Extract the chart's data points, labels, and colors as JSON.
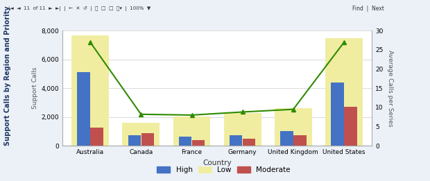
{
  "categories": [
    "Australia",
    "Canada",
    "France",
    "Germany",
    "United Kingdom",
    "United States"
  ],
  "high": [
    5100,
    750,
    650,
    750,
    1000,
    4400
  ],
  "low": [
    7700,
    1600,
    2050,
    2250,
    2600,
    7500
  ],
  "moderate": [
    1250,
    850,
    400,
    500,
    750,
    2700
  ],
  "avg_calls": [
    27,
    8.2,
    8.0,
    8.8,
    9.5,
    27
  ],
  "bar_color_high": "#4472C4",
  "bar_color_low": "#F0EDA0",
  "bar_color_moderate": "#C0504D",
  "line_color": "#2E8B00",
  "ylabel_left": "Support Calls",
  "ylabel_right": "Average Calls per Series",
  "xlabel": "Country",
  "chart_title": "Support Calls by Region and Priority",
  "ylim_left": [
    0,
    8000
  ],
  "ylim_right": [
    0,
    30
  ],
  "yticks_left": [
    0,
    2000,
    4000,
    6000,
    8000
  ],
  "yticks_right": [
    0,
    5,
    10,
    15,
    20,
    25,
    30
  ],
  "plot_bg_color": "#FFFFFF",
  "grid_color": "#CCCCCC",
  "toolbar_bg": "#ECF1F8",
  "chart_bg": "#FFFFFF",
  "legend_labels": [
    "High",
    "Low",
    "Moderate"
  ]
}
